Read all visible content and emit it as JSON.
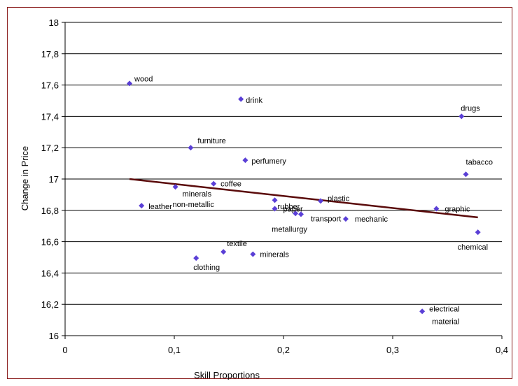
{
  "chart_data": {
    "type": "scatter",
    "title": "",
    "xlabel": "Skill Proportions",
    "ylabel": "Change in Price",
    "xlim": [
      0,
      0.4
    ],
    "ylim": [
      16,
      18
    ],
    "x_ticks": [
      "0",
      "0,1",
      "0,2",
      "0,3",
      "0,4"
    ],
    "y_ticks": [
      "16",
      "16,2",
      "16,4",
      "16,6",
      "16,8",
      "17",
      "17,2",
      "17,4",
      "17,6",
      "17,8",
      "18"
    ],
    "grid": "horizontal",
    "legend": "none",
    "marker_color": "#5a3fd6",
    "trendline_color": "#5a0a0a",
    "trendline": {
      "x": [
        0.059,
        0.378
      ],
      "y": [
        17.0,
        16.755
      ]
    },
    "points": [
      {
        "label": "wood",
        "x": 0.059,
        "y": 17.61
      },
      {
        "label": "drink",
        "x": 0.161,
        "y": 17.51
      },
      {
        "label": "drugs",
        "x": 0.363,
        "y": 17.4
      },
      {
        "label": "furniture",
        "x": 0.115,
        "y": 17.2
      },
      {
        "label": "perfumery",
        "x": 0.165,
        "y": 17.12
      },
      {
        "label": "tabacco",
        "x": 0.367,
        "y": 17.03
      },
      {
        "label": "coffee",
        "x": 0.136,
        "y": 16.97
      },
      {
        "label": "minerals",
        "x": 0.101,
        "y": 16.95
      },
      {
        "label": "non-metallic",
        "x": 0.101,
        "y": 16.95
      },
      {
        "label": "leather",
        "x": 0.07,
        "y": 16.83
      },
      {
        "label": "rubber",
        "x": 0.192,
        "y": 16.865
      },
      {
        "label": "plastic",
        "x": 0.234,
        "y": 16.86
      },
      {
        "label": "paper",
        "x": 0.192,
        "y": 16.81
      },
      {
        "label": "metallurgy",
        "x": 0.211,
        "y": 16.78
      },
      {
        "label": "transport",
        "x": 0.216,
        "y": 16.775
      },
      {
        "label": "mechanic",
        "x": 0.257,
        "y": 16.745
      },
      {
        "label": "graphic",
        "x": 0.34,
        "y": 16.81
      },
      {
        "label": "chemical",
        "x": 0.378,
        "y": 16.66
      },
      {
        "label": "textile",
        "x": 0.145,
        "y": 16.535
      },
      {
        "label": "minerals",
        "x": 0.172,
        "y": 16.52
      },
      {
        "label": "clothing",
        "x": 0.12,
        "y": 16.495
      },
      {
        "label": "electrical",
        "x": 0.327,
        "y": 16.155
      },
      {
        "label": "material",
        "x": 0.327,
        "y": 16.155
      }
    ]
  }
}
